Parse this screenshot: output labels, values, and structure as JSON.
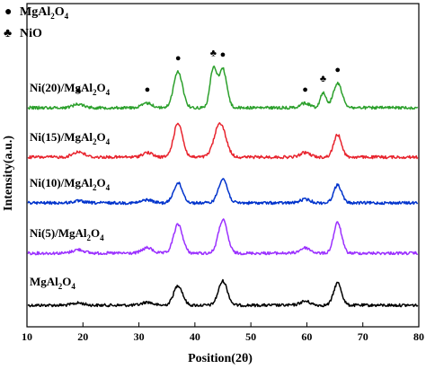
{
  "chart_data": {
    "type": "line",
    "title": "",
    "xlabel": "Position(2θ)",
    "ylabel": "Intensity(a.u.)",
    "xlim": [
      10,
      80
    ],
    "xticks": [
      10,
      20,
      30,
      40,
      50,
      60,
      70,
      80
    ],
    "y_ticks_shown": false,
    "grid": false,
    "legend": {
      "placement": "top-left",
      "entries": [
        {
          "symbol": "●",
          "label": "MgAl2O4",
          "label_main": "MgAl",
          "sub1": "2",
          "mid": "O",
          "sub2": "4"
        },
        {
          "symbol": "♣",
          "label": "NiO"
        }
      ]
    },
    "series": [
      {
        "name": "MgAl2O4",
        "label_parts": {
          "pre": "MgAl",
          "s1": "2",
          "mid": "O",
          "s2": "4"
        },
        "color": "#000000",
        "baseline": 0,
        "peaks": [
          [
            19.2,
            2.5,
            1.0
          ],
          [
            31.5,
            3.5,
            0.9
          ],
          [
            37.0,
            22,
            0.8
          ],
          [
            45.0,
            27,
            0.8
          ],
          [
            59.7,
            4.5,
            0.9
          ],
          [
            65.5,
            25,
            0.7
          ]
        ]
      },
      {
        "name": "Ni(5)/MgAl2O4",
        "label_parts": {
          "pre": "Ni(5)/MgAl",
          "s1": "2",
          "mid": "O",
          "s2": "4"
        },
        "color": "#9b30ff",
        "baseline": 1,
        "peaks": [
          [
            19.2,
            4,
            1.0
          ],
          [
            31.5,
            6,
            0.9
          ],
          [
            37.0,
            32,
            0.8
          ],
          [
            45.0,
            37,
            0.8
          ],
          [
            59.7,
            6,
            0.9
          ],
          [
            65.5,
            34,
            0.7
          ]
        ]
      },
      {
        "name": "Ni(10)/MgAl2O4",
        "label_parts": {
          "pre": "Ni(10)/MgAl",
          "s1": "2",
          "mid": "O",
          "s2": "4"
        },
        "color": "#0033cc",
        "baseline": 2,
        "peaks": [
          [
            19.2,
            2,
            1.0
          ],
          [
            31.5,
            3.5,
            0.9
          ],
          [
            37.0,
            22,
            0.8
          ],
          [
            45.0,
            27,
            0.8
          ],
          [
            59.7,
            4,
            0.9
          ],
          [
            65.5,
            20,
            0.7
          ]
        ]
      },
      {
        "name": "Ni(15)/MgAl2O4",
        "label_parts": {
          "pre": "Ni(15)/MgAl",
          "s1": "2",
          "mid": "O",
          "s2": "4"
        },
        "color": "#e8242e",
        "baseline": 3,
        "peaks": [
          [
            19.2,
            6,
            1.0
          ],
          [
            31.5,
            5,
            0.9
          ],
          [
            37.0,
            38,
            0.8
          ],
          [
            44.5,
            38,
            1.0
          ],
          [
            59.7,
            5,
            0.9
          ],
          [
            65.5,
            25,
            0.7
          ]
        ]
      },
      {
        "name": "Ni(20)/MgAl2O4",
        "label_parts": {
          "pre": "Ni(20)/MgAl",
          "s1": "2",
          "mid": "O",
          "s2": "4"
        },
        "color": "#2ca02c",
        "baseline": 4,
        "peaks": [
          [
            19.2,
            4,
            1.0
          ],
          [
            31.5,
            5,
            0.9
          ],
          [
            37.0,
            40,
            0.8
          ],
          [
            43.3,
            43,
            0.6
          ],
          [
            45.0,
            43,
            0.7
          ],
          [
            59.7,
            5,
            0.9
          ],
          [
            62.9,
            17,
            0.5
          ],
          [
            65.5,
            27,
            0.8
          ]
        ]
      }
    ],
    "annotations": [
      {
        "symbol": "●",
        "x": 19.2,
        "series": "Ni(20)/MgAl2O4"
      },
      {
        "symbol": "●",
        "x": 31.5,
        "series": "Ni(20)/MgAl2O4"
      },
      {
        "symbol": "●",
        "x": 37.0,
        "series": "Ni(20)/MgAl2O4"
      },
      {
        "symbol": "♣",
        "x": 43.3,
        "series": "Ni(20)/MgAl2O4"
      },
      {
        "symbol": "●",
        "x": 45.0,
        "series": "Ni(20)/MgAl2O4"
      },
      {
        "symbol": "●",
        "x": 59.7,
        "series": "Ni(20)/MgAl2O4"
      },
      {
        "symbol": "♣",
        "x": 62.9,
        "series": "Ni(20)/MgAl2O4"
      },
      {
        "symbol": "●",
        "x": 65.5,
        "series": "Ni(20)/MgAl2O4"
      }
    ]
  }
}
